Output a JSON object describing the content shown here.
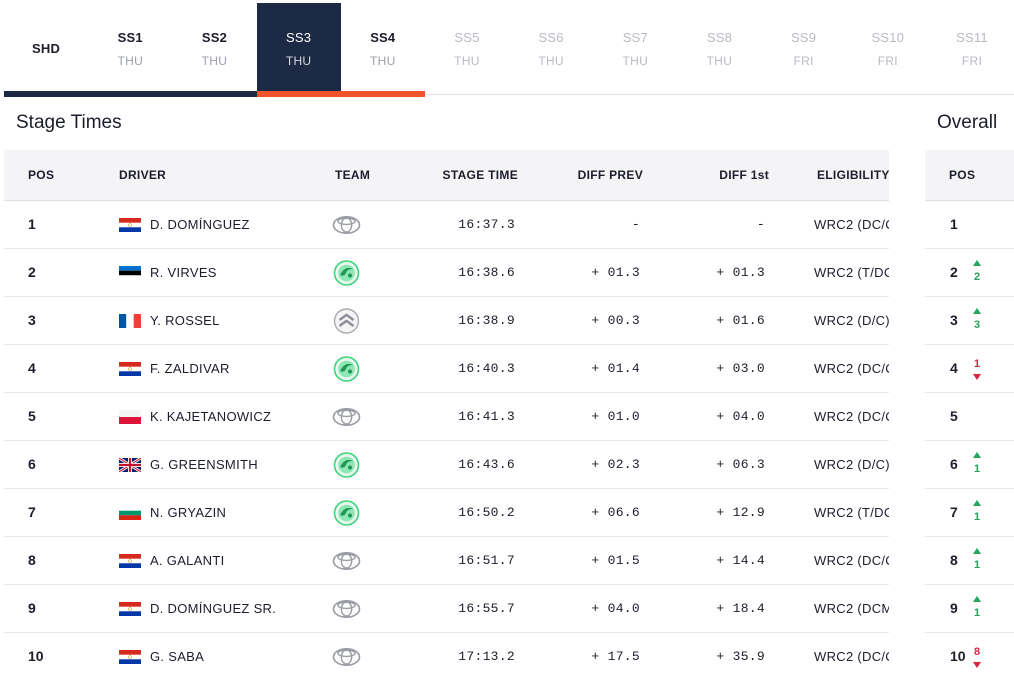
{
  "tabs": [
    {
      "code": "SHD",
      "day": "",
      "state": "done"
    },
    {
      "code": "SS1",
      "day": "THU",
      "state": "done"
    },
    {
      "code": "SS2",
      "day": "THU",
      "state": "done"
    },
    {
      "code": "SS3",
      "day": "THU",
      "state": "active"
    },
    {
      "code": "SS4",
      "day": "THU",
      "state": "done"
    },
    {
      "code": "SS5",
      "day": "THU",
      "state": "future"
    },
    {
      "code": "SS6",
      "day": "THU",
      "state": "future"
    },
    {
      "code": "SS7",
      "day": "THU",
      "state": "future"
    },
    {
      "code": "SS8",
      "day": "THU",
      "state": "future"
    },
    {
      "code": "SS9",
      "day": "FRI",
      "state": "future"
    },
    {
      "code": "SS10",
      "day": "FRI",
      "state": "future"
    },
    {
      "code": "SS11",
      "day": "FRI",
      "state": "future"
    }
  ],
  "stage_title": "Stage Times",
  "overall_title": "Overall",
  "headers": {
    "pos": "POS",
    "driver": "DRIVER",
    "team": "TEAM",
    "stage_time": "STAGE TIME",
    "diff_prev": "DIFF PREV",
    "diff_first": "DIFF 1st",
    "eligibility": "ELIGIBILITY",
    "overall_pos": "POS"
  },
  "colors": {
    "navy": "#1d2a45",
    "accent_orange": "#f0542a",
    "gain_green": "#27a15a",
    "loss_red": "#d6243f"
  },
  "rows": [
    {
      "pos": "1",
      "flag": "paraguay",
      "driver": "D. DOMÍNGUEZ",
      "team": "toyota-icon",
      "stage_time": "16:37.3",
      "diff_prev": "-",
      "diff_first": "-",
      "eligibility": "WRC2 (DC/C",
      "overall_pos": "1",
      "change": "",
      "change_dir": "none"
    },
    {
      "pos": "2",
      "flag": "estonia",
      "driver": "R. VIRVES",
      "team": "skoda-icon",
      "stage_time": "16:38.6",
      "diff_prev": "+ 01.3",
      "diff_first": "+ 01.3",
      "eligibility": "WRC2 (T/DC",
      "overall_pos": "2",
      "change": "2",
      "change_dir": "up"
    },
    {
      "pos": "3",
      "flag": "france",
      "driver": "Y. ROSSEL",
      "team": "citroen-icon",
      "stage_time": "16:38.9",
      "diff_prev": "+ 00.3",
      "diff_first": "+ 01.6",
      "eligibility": "WRC2 (D/C)",
      "overall_pos": "3",
      "change": "3",
      "change_dir": "up"
    },
    {
      "pos": "4",
      "flag": "paraguay",
      "driver": "F. ZALDIVAR",
      "team": "skoda-icon",
      "stage_time": "16:40.3",
      "diff_prev": "+ 01.4",
      "diff_first": "+ 03.0",
      "eligibility": "WRC2 (DC/C",
      "overall_pos": "4",
      "change": "1",
      "change_dir": "down"
    },
    {
      "pos": "5",
      "flag": "poland",
      "driver": "K. KAJETANOWICZ",
      "team": "toyota-icon",
      "stage_time": "16:41.3",
      "diff_prev": "+ 01.0",
      "diff_first": "+ 04.0",
      "eligibility": "WRC2 (DC/C",
      "overall_pos": "5",
      "change": "",
      "change_dir": "none"
    },
    {
      "pos": "6",
      "flag": "uk",
      "driver": "G. GREENSMITH",
      "team": "skoda-icon",
      "stage_time": "16:43.6",
      "diff_prev": "+ 02.3",
      "diff_first": "+ 06.3",
      "eligibility": "WRC2 (D/C)",
      "overall_pos": "6",
      "change": "1",
      "change_dir": "up"
    },
    {
      "pos": "7",
      "flag": "bulgaria",
      "driver": "N. GRYAZIN",
      "team": "skoda-icon",
      "stage_time": "16:50.2",
      "diff_prev": "+ 06.6",
      "diff_first": "+ 12.9",
      "eligibility": "WRC2 (T/DC",
      "overall_pos": "7",
      "change": "1",
      "change_dir": "up"
    },
    {
      "pos": "8",
      "flag": "paraguay",
      "driver": "A. GALANTI",
      "team": "toyota-icon",
      "stage_time": "16:51.7",
      "diff_prev": "+ 01.5",
      "diff_first": "+ 14.4",
      "eligibility": "WRC2 (DC/C",
      "overall_pos": "8",
      "change": "1",
      "change_dir": "up"
    },
    {
      "pos": "9",
      "flag": "paraguay",
      "driver": "D. DOMÍNGUEZ SR.",
      "team": "toyota-icon",
      "stage_time": "16:55.7",
      "diff_prev": "+ 04.0",
      "diff_first": "+ 18.4",
      "eligibility": "WRC2 (DCM",
      "overall_pos": "9",
      "change": "1",
      "change_dir": "up"
    },
    {
      "pos": "10",
      "flag": "paraguay",
      "driver": "G. SABA",
      "team": "toyota-icon",
      "stage_time": "17:13.2",
      "diff_prev": "+ 17.5",
      "diff_first": "+ 35.9",
      "eligibility": "WRC2 (DC/C",
      "overall_pos": "10",
      "change": "8",
      "change_dir": "down"
    }
  ]
}
